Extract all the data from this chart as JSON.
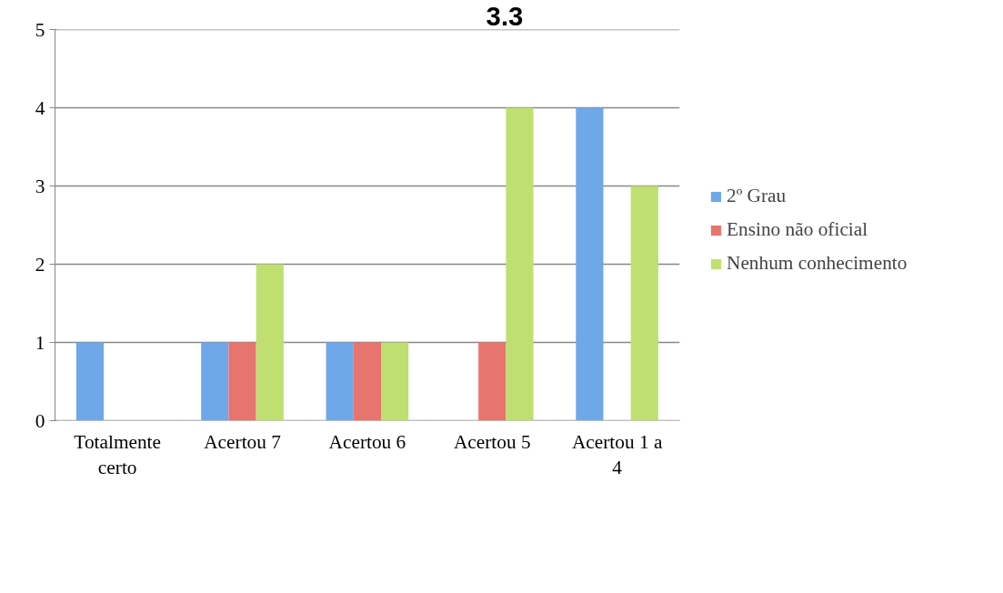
{
  "chart_data": {
    "type": "bar",
    "title": "3.3",
    "categories": [
      "Totalmente certo",
      "Acertou 7",
      "Acertou 6",
      "Acertou 5",
      "Acertou 1 a 4"
    ],
    "series": [
      {
        "name": "2º Grau",
        "color": "#6fa8e8",
        "values": [
          1,
          1,
          1,
          0,
          4
        ]
      },
      {
        "name": "Ensino não oficial",
        "color": "#e8746e",
        "values": [
          0,
          1,
          1,
          1,
          0
        ]
      },
      {
        "name": "Nenhum conhecimento",
        "color": "#bfe070",
        "values": [
          0,
          2,
          1,
          4,
          3
        ]
      }
    ],
    "ylim": [
      0,
      5
    ],
    "yticks": [
      0,
      1,
      2,
      3,
      4,
      5
    ],
    "grid": "y",
    "legend": "right"
  }
}
